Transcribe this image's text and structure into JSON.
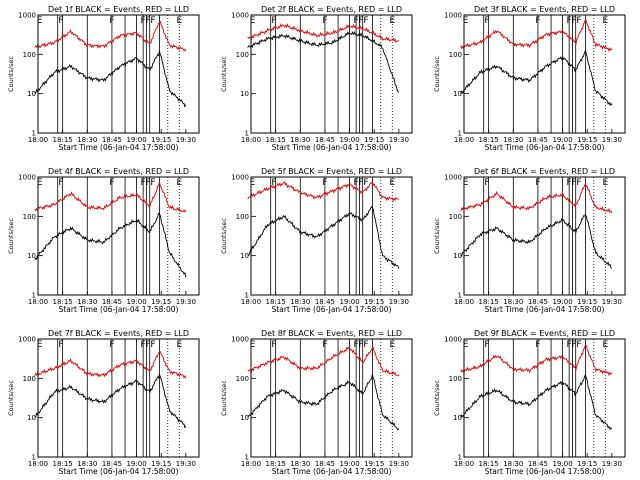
{
  "chart_data": [
    {
      "type": "line",
      "title": "Det 1f BLACK = Events, RED = LLD",
      "xlabel": "Start Time (06-Jan-04 17:58:00)",
      "ylabel": "Counts/sec",
      "y_scale": "log",
      "ylim": [
        1,
        1000
      ],
      "x_tick_labels": [
        "18:00",
        "18:15",
        "18:30",
        "18:45",
        "19:00",
        "19:15",
        "19:30"
      ],
      "y_tick_labels": [
        "1",
        "10",
        "100",
        "1000"
      ],
      "x": [
        "17:58",
        "18:10",
        "18:20",
        "18:30",
        "18:40",
        "18:50",
        "19:00",
        "19:08",
        "19:14",
        "19:20",
        "19:30"
      ],
      "series": [
        {
          "color": "#e00000",
          "values": [
            150,
            200,
            380,
            170,
            160,
            300,
            350,
            180,
            700,
            170,
            130
          ]
        },
        {
          "color": "#000000",
          "values": [
            10,
            35,
            50,
            25,
            22,
            50,
            80,
            40,
            120,
            12,
            5
          ]
        }
      ],
      "flag_labels": [
        "E",
        "F",
        "F",
        "F",
        "F",
        "F",
        "E"
      ]
    },
    {
      "type": "line",
      "title": "Det 2f BLACK = Events, RED = LLD",
      "xlabel": "Start Time (06-Jan-04 17:58:00)",
      "ylabel": "Counts/sec",
      "y_scale": "log",
      "ylim": [
        1,
        1000
      ],
      "x_tick_labels": [
        "18:00",
        "18:15",
        "18:30",
        "18:45",
        "19:00",
        "19:15",
        "19:30"
      ],
      "y_tick_labels": [
        "1",
        "10",
        "100",
        "1000"
      ],
      "x": [
        "17:58",
        "18:10",
        "18:20",
        "18:30",
        "18:40",
        "18:50",
        "19:00",
        "19:08",
        "19:14",
        "19:20",
        "19:30"
      ],
      "series": [
        {
          "color": "#e00000",
          "values": [
            250,
            400,
            550,
            400,
            300,
            350,
            520,
            450,
            350,
            250,
            220
          ]
        },
        {
          "color": "#000000",
          "values": [
            150,
            250,
            300,
            220,
            170,
            200,
            350,
            300,
            220,
            150,
            10
          ]
        }
      ],
      "flag_labels": [
        "E",
        "F",
        "F",
        "F",
        "F",
        "F",
        "E"
      ]
    },
    {
      "type": "line",
      "title": "Det 3f BLACK = Events, RED = LLD",
      "xlabel": "Start Time (06-Jan-04 17:58:00)",
      "ylabel": "Counts/sec",
      "y_scale": "log",
      "ylim": [
        1,
        1000
      ],
      "x_tick_labels": [
        "18:00",
        "18:15",
        "18:30",
        "18:45",
        "19:00",
        "19:15",
        "19:30"
      ],
      "y_tick_labels": [
        "1",
        "10",
        "100",
        "1000"
      ],
      "x": [
        "17:58",
        "18:10",
        "18:20",
        "18:30",
        "18:40",
        "18:50",
        "19:00",
        "19:08",
        "19:14",
        "19:20",
        "19:30"
      ],
      "series": [
        {
          "color": "#e00000",
          "values": [
            150,
            200,
            400,
            180,
            170,
            320,
            380,
            200,
            750,
            180,
            130
          ]
        },
        {
          "color": "#000000",
          "values": [
            10,
            35,
            50,
            25,
            22,
            50,
            85,
            40,
            120,
            12,
            5
          ]
        }
      ],
      "flag_labels": [
        "E",
        "F",
        "F",
        "F",
        "F",
        "F",
        "E"
      ]
    },
    {
      "type": "line",
      "title": "Det 4f BLACK = Events, RED = LLD",
      "xlabel": "Start Time (06-Jan-04 17:58:00)",
      "ylabel": "Counts/sec",
      "y_scale": "log",
      "ylim": [
        1,
        1000
      ],
      "x_tick_labels": [
        "18:00",
        "18:15",
        "18:30",
        "18:45",
        "19:00",
        "19:15",
        "19:30"
      ],
      "y_tick_labels": [
        "1",
        "10",
        "100",
        "1000"
      ],
      "x": [
        "17:58",
        "18:10",
        "18:20",
        "18:30",
        "18:40",
        "18:50",
        "19:00",
        "19:08",
        "19:14",
        "19:20",
        "19:30"
      ],
      "series": [
        {
          "color": "#e00000",
          "values": [
            150,
            200,
            380,
            170,
            160,
            300,
            350,
            180,
            700,
            170,
            130
          ]
        },
        {
          "color": "#000000",
          "values": [
            8,
            30,
            50,
            25,
            22,
            50,
            80,
            40,
            120,
            12,
            3
          ]
        }
      ],
      "flag_labels": [
        "E",
        "F",
        "F",
        "F",
        "F",
        "F",
        "E"
      ]
    },
    {
      "type": "line",
      "title": "Det 5f BLACK = Events, RED = LLD",
      "xlabel": "Start Time (06-Jan-04 17:58:00)",
      "ylabel": "Counts/sec",
      "y_scale": "log",
      "ylim": [
        1,
        1000
      ],
      "x_tick_labels": [
        "18:00",
        "18:15",
        "18:30",
        "18:45",
        "19:00",
        "19:15",
        "19:30"
      ],
      "y_tick_labels": [
        "1",
        "10",
        "100",
        "1000"
      ],
      "x": [
        "17:58",
        "18:10",
        "18:20",
        "18:30",
        "18:40",
        "18:50",
        "19:00",
        "19:08",
        "19:14",
        "19:20",
        "19:30"
      ],
      "series": [
        {
          "color": "#e00000",
          "values": [
            300,
            500,
            700,
            400,
            300,
            450,
            650,
            400,
            750,
            300,
            270
          ]
        },
        {
          "color": "#000000",
          "values": [
            10,
            60,
            100,
            40,
            30,
            60,
            120,
            80,
            180,
            10,
            5
          ]
        }
      ],
      "flag_labels": [
        "E",
        "F",
        "F",
        "F",
        "F",
        "F",
        "E"
      ]
    },
    {
      "type": "line",
      "title": "Det 6f BLACK = Events, RED = LLD",
      "xlabel": "Start Time (06-Jan-04 17:58:00)",
      "ylabel": "Counts/sec",
      "y_scale": "log",
      "ylim": [
        1,
        1000
      ],
      "x_tick_labels": [
        "18:00",
        "18:15",
        "18:30",
        "18:45",
        "19:00",
        "19:15",
        "19:30"
      ],
      "y_tick_labels": [
        "1",
        "10",
        "100",
        "1000"
      ],
      "x": [
        "17:58",
        "18:10",
        "18:20",
        "18:30",
        "18:40",
        "18:50",
        "19:00",
        "19:08",
        "19:14",
        "19:20",
        "19:30"
      ],
      "series": [
        {
          "color": "#e00000",
          "values": [
            150,
            200,
            380,
            170,
            160,
            300,
            350,
            180,
            700,
            170,
            130
          ]
        },
        {
          "color": "#000000",
          "values": [
            10,
            35,
            50,
            25,
            22,
            50,
            80,
            40,
            120,
            12,
            5
          ]
        }
      ],
      "flag_labels": [
        "E",
        "F",
        "F",
        "F",
        "F",
        "F",
        "E"
      ]
    },
    {
      "type": "line",
      "title": "Det 7f BLACK = Events, RED = LLD",
      "xlabel": "Start Time (06-Jan-04 17:58:00)",
      "ylabel": "Counts/sec",
      "y_scale": "log",
      "ylim": [
        1,
        1000
      ],
      "x_tick_labels": [
        "18:00",
        "18:15",
        "18:30",
        "18:45",
        "19:00",
        "19:15",
        "19:30"
      ],
      "y_tick_labels": [
        "1",
        "10",
        "100",
        "1000"
      ],
      "x": [
        "17:58",
        "18:10",
        "18:20",
        "18:30",
        "18:40",
        "18:50",
        "19:00",
        "19:08",
        "19:14",
        "19:20",
        "19:30"
      ],
      "series": [
        {
          "color": "#e00000",
          "values": [
            120,
            180,
            280,
            130,
            120,
            220,
            280,
            150,
            500,
            150,
            110
          ]
        },
        {
          "color": "#000000",
          "values": [
            10,
            45,
            60,
            30,
            25,
            55,
            85,
            45,
            130,
            15,
            6
          ]
        }
      ],
      "flag_labels": [
        "E",
        "F",
        "F",
        "F",
        "F",
        "F",
        "E"
      ]
    },
    {
      "type": "line",
      "title": "Det 8f BLACK = Events, RED = LLD",
      "xlabel": "Start Time (06-Jan-04 17:58:00)",
      "ylabel": "Counts/sec",
      "y_scale": "log",
      "ylim": [
        1,
        1000
      ],
      "x_tick_labels": [
        "18:00",
        "18:15",
        "18:30",
        "18:45",
        "19:00",
        "19:15",
        "19:30"
      ],
      "y_tick_labels": [
        "1",
        "10",
        "100",
        "1000"
      ],
      "x": [
        "17:58",
        "18:10",
        "18:20",
        "18:30",
        "18:40",
        "18:50",
        "19:00",
        "19:08",
        "19:14",
        "19:20",
        "19:30"
      ],
      "series": [
        {
          "color": "#e00000",
          "values": [
            150,
            250,
            350,
            180,
            180,
            350,
            600,
            250,
            600,
            160,
            120
          ]
        },
        {
          "color": "#000000",
          "values": [
            10,
            35,
            50,
            25,
            22,
            50,
            80,
            40,
            120,
            12,
            5
          ]
        }
      ],
      "flag_labels": [
        "E",
        "F",
        "F",
        "F",
        "F",
        "F",
        "E"
      ]
    },
    {
      "type": "line",
      "title": "Det 9f BLACK = Events, RED = LLD",
      "xlabel": "Start Time (06-Jan-04 17:58:00)",
      "ylabel": "Counts/sec",
      "y_scale": "log",
      "ylim": [
        1,
        1000
      ],
      "x_tick_labels": [
        "18:00",
        "18:15",
        "18:30",
        "18:45",
        "19:00",
        "19:15",
        "19:30"
      ],
      "y_tick_labels": [
        "1",
        "10",
        "100",
        "1000"
      ],
      "x": [
        "17:58",
        "18:10",
        "18:20",
        "18:30",
        "18:40",
        "18:50",
        "19:00",
        "19:08",
        "19:14",
        "19:20",
        "19:30"
      ],
      "series": [
        {
          "color": "#e00000",
          "values": [
            150,
            200,
            380,
            170,
            160,
            300,
            350,
            180,
            700,
            170,
            130
          ]
        },
        {
          "color": "#000000",
          "values": [
            10,
            35,
            50,
            25,
            22,
            50,
            80,
            40,
            120,
            12,
            5
          ]
        }
      ],
      "flag_labels": [
        "E",
        "F",
        "F",
        "F",
        "F",
        "F",
        "E"
      ]
    }
  ]
}
